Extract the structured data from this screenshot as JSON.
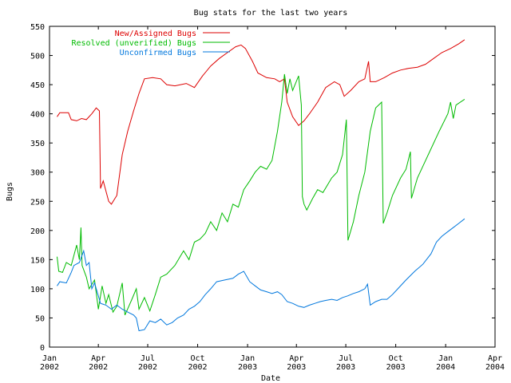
{
  "chart_data": {
    "type": "line",
    "title": "Bug stats for the last two years",
    "xlabel": "Date",
    "ylabel": "Bugs",
    "ylim": [
      0,
      550
    ],
    "xlim": [
      "2002-01-01",
      "2004-04-01"
    ],
    "grid": false,
    "legend_position": "top-left",
    "y_ticks": [
      0,
      50,
      100,
      150,
      200,
      250,
      300,
      350,
      400,
      450,
      500,
      550
    ],
    "x_ticks": [
      {
        "date": "2002-01-01",
        "line1": "Jan",
        "line2": "2002"
      },
      {
        "date": "2002-04-01",
        "line1": "Apr",
        "line2": "2002"
      },
      {
        "date": "2002-07-01",
        "line1": "Jul",
        "line2": "2002"
      },
      {
        "date": "2002-10-01",
        "line1": "Oct",
        "line2": "2002"
      },
      {
        "date": "2003-01-01",
        "line1": "Jan",
        "line2": "2003"
      },
      {
        "date": "2003-04-01",
        "line1": "Apr",
        "line2": "2003"
      },
      {
        "date": "2003-07-01",
        "line1": "Jul",
        "line2": "2003"
      },
      {
        "date": "2003-10-01",
        "line1": "Oct",
        "line2": "2003"
      },
      {
        "date": "2004-01-01",
        "line1": "Jan",
        "line2": "2004"
      },
      {
        "date": "2004-04-01",
        "line1": "Apr",
        "line2": "2004"
      }
    ],
    "series": [
      {
        "name": "New/Assigned Bugs",
        "color": "#dd0000",
        "points": [
          [
            "2002-01-15",
            395
          ],
          [
            "2002-01-20",
            402
          ],
          [
            "2002-02-05",
            402
          ],
          [
            "2002-02-10",
            390
          ],
          [
            "2002-02-20",
            388
          ],
          [
            "2002-03-01",
            392
          ],
          [
            "2002-03-10",
            390
          ],
          [
            "2002-03-20",
            400
          ],
          [
            "2002-03-28",
            410
          ],
          [
            "2002-04-03",
            405
          ],
          [
            "2002-04-05",
            272
          ],
          [
            "2002-04-10",
            285
          ],
          [
            "2002-04-20",
            250
          ],
          [
            "2002-04-25",
            245
          ],
          [
            "2002-05-05",
            260
          ],
          [
            "2002-05-15",
            330
          ],
          [
            "2002-05-25",
            370
          ],
          [
            "2002-06-05",
            405
          ],
          [
            "2002-06-15",
            435
          ],
          [
            "2002-06-25",
            460
          ],
          [
            "2002-07-10",
            462
          ],
          [
            "2002-07-25",
            460
          ],
          [
            "2002-08-05",
            450
          ],
          [
            "2002-08-20",
            448
          ],
          [
            "2002-09-10",
            452
          ],
          [
            "2002-09-25",
            445
          ],
          [
            "2002-10-10",
            465
          ],
          [
            "2002-10-25",
            482
          ],
          [
            "2002-11-10",
            495
          ],
          [
            "2002-11-25",
            505
          ],
          [
            "2002-12-10",
            515
          ],
          [
            "2002-12-20",
            518
          ],
          [
            "2002-12-28",
            512
          ],
          [
            "2003-01-10",
            490
          ],
          [
            "2003-01-20",
            470
          ],
          [
            "2003-02-05",
            462
          ],
          [
            "2003-02-20",
            460
          ],
          [
            "2003-03-01",
            455
          ],
          [
            "2003-03-10",
            460
          ],
          [
            "2003-03-15",
            420
          ],
          [
            "2003-03-25",
            395
          ],
          [
            "2003-04-05",
            380
          ],
          [
            "2003-04-15",
            388
          ],
          [
            "2003-04-25",
            400
          ],
          [
            "2003-05-10",
            420
          ],
          [
            "2003-05-25",
            445
          ],
          [
            "2003-06-10",
            455
          ],
          [
            "2003-06-20",
            450
          ],
          [
            "2003-06-28",
            430
          ],
          [
            "2003-07-10",
            440
          ],
          [
            "2003-07-25",
            455
          ],
          [
            "2003-08-05",
            460
          ],
          [
            "2003-08-12",
            490
          ],
          [
            "2003-08-15",
            455
          ],
          [
            "2003-08-25",
            455
          ],
          [
            "2003-09-10",
            462
          ],
          [
            "2003-09-25",
            470
          ],
          [
            "2003-10-10",
            475
          ],
          [
            "2003-10-25",
            478
          ],
          [
            "2003-11-10",
            480
          ],
          [
            "2003-11-25",
            485
          ],
          [
            "2003-12-10",
            495
          ],
          [
            "2003-12-25",
            505
          ],
          [
            "2004-01-10",
            512
          ],
          [
            "2004-01-25",
            520
          ],
          [
            "2004-02-05",
            527
          ]
        ]
      },
      {
        "name": "Resolved (unverified) Bugs",
        "color": "#00bb00",
        "points": [
          [
            "2002-01-15",
            155
          ],
          [
            "2002-01-18",
            130
          ],
          [
            "2002-01-25",
            128
          ],
          [
            "2002-02-01",
            145
          ],
          [
            "2002-02-10",
            140
          ],
          [
            "2002-02-20",
            175
          ],
          [
            "2002-02-25",
            150
          ],
          [
            "2002-02-28",
            205
          ],
          [
            "2002-03-02",
            140
          ],
          [
            "2002-03-10",
            120
          ],
          [
            "2002-03-15",
            100
          ],
          [
            "2002-03-25",
            115
          ],
          [
            "2002-04-01",
            65
          ],
          [
            "2002-04-08",
            105
          ],
          [
            "2002-04-15",
            75
          ],
          [
            "2002-04-20",
            90
          ],
          [
            "2002-04-28",
            60
          ],
          [
            "2002-05-05",
            70
          ],
          [
            "2002-05-15",
            110
          ],
          [
            "2002-05-20",
            55
          ],
          [
            "2002-06-01",
            80
          ],
          [
            "2002-06-10",
            100
          ],
          [
            "2002-06-15",
            65
          ],
          [
            "2002-06-25",
            85
          ],
          [
            "2002-07-05",
            62
          ],
          [
            "2002-07-15",
            90
          ],
          [
            "2002-07-25",
            120
          ],
          [
            "2002-08-05",
            125
          ],
          [
            "2002-08-20",
            140
          ],
          [
            "2002-09-05",
            165
          ],
          [
            "2002-09-15",
            150
          ],
          [
            "2002-09-25",
            180
          ],
          [
            "2002-10-05",
            185
          ],
          [
            "2002-10-15",
            195
          ],
          [
            "2002-10-25",
            215
          ],
          [
            "2002-11-05",
            200
          ],
          [
            "2002-11-15",
            230
          ],
          [
            "2002-11-25",
            215
          ],
          [
            "2002-12-05",
            245
          ],
          [
            "2002-12-15",
            240
          ],
          [
            "2002-12-25",
            270
          ],
          [
            "2003-01-05",
            285
          ],
          [
            "2003-01-15",
            300
          ],
          [
            "2003-01-25",
            310
          ],
          [
            "2003-02-05",
            305
          ],
          [
            "2003-02-15",
            320
          ],
          [
            "2003-02-25",
            370
          ],
          [
            "2003-03-05",
            420
          ],
          [
            "2003-03-10",
            468
          ],
          [
            "2003-03-15",
            435
          ],
          [
            "2003-03-20",
            460
          ],
          [
            "2003-03-25",
            440
          ],
          [
            "2003-04-05",
            465
          ],
          [
            "2003-04-10",
            415
          ],
          [
            "2003-04-12",
            258
          ],
          [
            "2003-04-15",
            245
          ],
          [
            "2003-04-20",
            235
          ],
          [
            "2003-05-01",
            255
          ],
          [
            "2003-05-10",
            270
          ],
          [
            "2003-05-20",
            265
          ],
          [
            "2003-06-05",
            290
          ],
          [
            "2003-06-15",
            300
          ],
          [
            "2003-06-25",
            330
          ],
          [
            "2003-07-02",
            390
          ],
          [
            "2003-07-05",
            183
          ],
          [
            "2003-07-15",
            215
          ],
          [
            "2003-07-25",
            260
          ],
          [
            "2003-08-05",
            300
          ],
          [
            "2003-08-15",
            370
          ],
          [
            "2003-08-25",
            410
          ],
          [
            "2003-09-05",
            420
          ],
          [
            "2003-09-08",
            212
          ],
          [
            "2003-09-15",
            230
          ],
          [
            "2003-09-25",
            260
          ],
          [
            "2003-10-10",
            290
          ],
          [
            "2003-10-20",
            305
          ],
          [
            "2003-10-28",
            335
          ],
          [
            "2003-10-30",
            255
          ],
          [
            "2003-11-10",
            290
          ],
          [
            "2003-11-20",
            310
          ],
          [
            "2003-12-05",
            340
          ],
          [
            "2003-12-20",
            370
          ],
          [
            "2004-01-05",
            400
          ],
          [
            "2004-01-10",
            420
          ],
          [
            "2004-01-15",
            392
          ],
          [
            "2004-01-20",
            415
          ],
          [
            "2004-02-05",
            425
          ]
        ]
      },
      {
        "name": "Unconfirmed Bugs",
        "color": "#0077dd",
        "points": [
          [
            "2002-01-15",
            105
          ],
          [
            "2002-01-20",
            112
          ],
          [
            "2002-02-01",
            110
          ],
          [
            "2002-02-10",
            128
          ],
          [
            "2002-02-15",
            140
          ],
          [
            "2002-02-25",
            145
          ],
          [
            "2002-03-05",
            165
          ],
          [
            "2002-03-10",
            140
          ],
          [
            "2002-03-15",
            145
          ],
          [
            "2002-03-20",
            100
          ],
          [
            "2002-03-25",
            110
          ],
          [
            "2002-04-05",
            75
          ],
          [
            "2002-04-15",
            72
          ],
          [
            "2002-04-25",
            65
          ],
          [
            "2002-05-05",
            72
          ],
          [
            "2002-05-15",
            65
          ],
          [
            "2002-05-25",
            60
          ],
          [
            "2002-06-05",
            55
          ],
          [
            "2002-06-10",
            50
          ],
          [
            "2002-06-15",
            28
          ],
          [
            "2002-06-25",
            30
          ],
          [
            "2002-07-05",
            45
          ],
          [
            "2002-07-15",
            42
          ],
          [
            "2002-07-25",
            48
          ],
          [
            "2002-08-05",
            38
          ],
          [
            "2002-08-15",
            42
          ],
          [
            "2002-08-25",
            50
          ],
          [
            "2002-09-05",
            55
          ],
          [
            "2002-09-15",
            65
          ],
          [
            "2002-09-25",
            70
          ],
          [
            "2002-10-05",
            78
          ],
          [
            "2002-10-15",
            90
          ],
          [
            "2002-10-25",
            100
          ],
          [
            "2002-11-05",
            112
          ],
          [
            "2002-11-20",
            115
          ],
          [
            "2002-12-05",
            118
          ],
          [
            "2002-12-15",
            125
          ],
          [
            "2002-12-25",
            130
          ],
          [
            "2003-01-05",
            112
          ],
          [
            "2003-01-15",
            105
          ],
          [
            "2003-01-25",
            98
          ],
          [
            "2003-02-05",
            95
          ],
          [
            "2003-02-15",
            92
          ],
          [
            "2003-02-25",
            95
          ],
          [
            "2003-03-05",
            90
          ],
          [
            "2003-03-15",
            78
          ],
          [
            "2003-03-25",
            75
          ],
          [
            "2003-04-05",
            70
          ],
          [
            "2003-04-15",
            68
          ],
          [
            "2003-04-25",
            72
          ],
          [
            "2003-05-05",
            75
          ],
          [
            "2003-05-15",
            78
          ],
          [
            "2003-05-25",
            80
          ],
          [
            "2003-06-05",
            82
          ],
          [
            "2003-06-15",
            80
          ],
          [
            "2003-06-25",
            85
          ],
          [
            "2003-07-05",
            88
          ],
          [
            "2003-07-15",
            92
          ],
          [
            "2003-07-25",
            95
          ],
          [
            "2003-08-05",
            100
          ],
          [
            "2003-08-10",
            108
          ],
          [
            "2003-08-15",
            72
          ],
          [
            "2003-08-25",
            78
          ],
          [
            "2003-09-05",
            82
          ],
          [
            "2003-09-15",
            82
          ],
          [
            "2003-09-25",
            90
          ],
          [
            "2003-10-05",
            100
          ],
          [
            "2003-10-20",
            115
          ],
          [
            "2003-11-05",
            130
          ],
          [
            "2003-11-20",
            142
          ],
          [
            "2003-12-05",
            160
          ],
          [
            "2003-12-15",
            180
          ],
          [
            "2003-12-25",
            190
          ],
          [
            "2004-01-05",
            198
          ],
          [
            "2004-01-15",
            205
          ],
          [
            "2004-01-25",
            212
          ],
          [
            "2004-02-05",
            220
          ]
        ]
      }
    ]
  }
}
